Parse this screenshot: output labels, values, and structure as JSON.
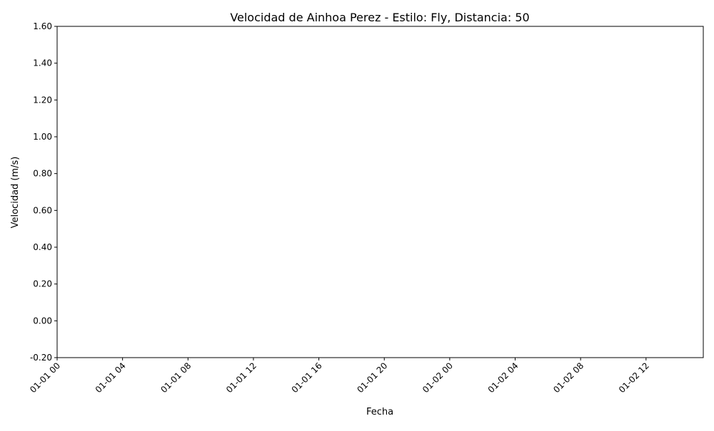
{
  "chart_data": {
    "type": "line",
    "title": "Velocidad de Ainhoa Perez - Estilo: Fly, Distancia: 50",
    "xlabel": "Fecha",
    "ylabel": "Velocidad (m/s)",
    "x_ticks": [
      "01-01 00",
      "01-01 04",
      "01-01 08",
      "01-01 12",
      "01-01 16",
      "01-01 20",
      "01-02 00",
      "01-02 04",
      "01-02 08",
      "01-02 12"
    ],
    "y_ticks": [
      "-0.20",
      "0.00",
      "0.20",
      "0.40",
      "0.60",
      "0.80",
      "1.00",
      "1.20",
      "1.40",
      "1.60"
    ],
    "xlim": [
      "01-01 00",
      "01-02 15"
    ],
    "ylim": [
      -0.2,
      1.6
    ],
    "series": [],
    "grid": false,
    "legend": "none"
  }
}
